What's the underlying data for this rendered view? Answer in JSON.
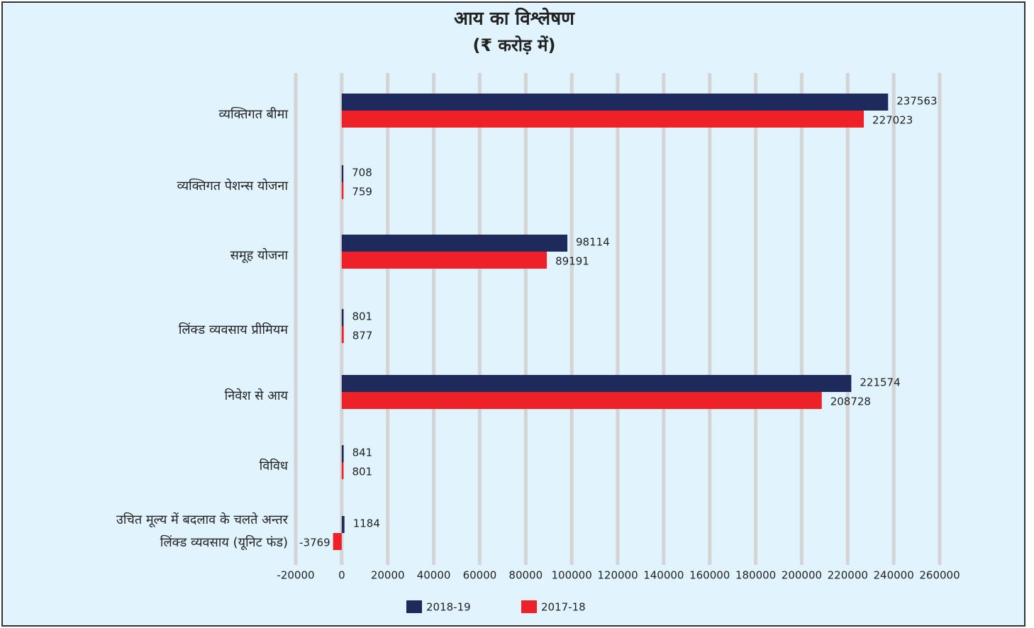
{
  "chart_data": {
    "type": "bar",
    "orientation": "horizontal",
    "title": "आय का विश्लेषण",
    "subtitle": "(₹ करोड़ में)",
    "categories": [
      "व्यक्तिगत बीमा",
      "व्यक्तिगत पेशन्स योजना",
      "समूह योजना",
      "लिंक्ड व्यवसाय प्रीमियम",
      "निवेश से आय",
      "विविध",
      [
        "उचित मूल्य में बदलाव के चलते अन्तर",
        "लिंक्ड व्यवसाय (यूनिट फंड)"
      ]
    ],
    "series": [
      {
        "name": "2018-19",
        "color": "#1f2a5c",
        "values": [
          237563,
          708,
          98114,
          801,
          221574,
          841,
          1184
        ]
      },
      {
        "name": "2017-18",
        "color": "#ee2028",
        "values": [
          227023,
          759,
          89191,
          877,
          208728,
          801,
          -3769
        ]
      }
    ],
    "xlim": [
      -20000,
      260000
    ],
    "xticks": [
      -20000,
      0,
      20000,
      40000,
      60000,
      80000,
      100000,
      120000,
      140000,
      160000,
      180000,
      200000,
      220000,
      240000,
      260000
    ],
    "grid": true,
    "legend": "bottom"
  }
}
